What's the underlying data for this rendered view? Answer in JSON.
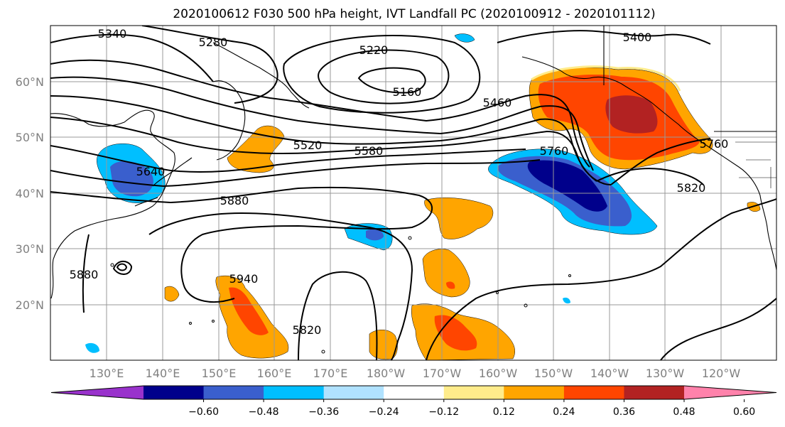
{
  "title": "2020100612 F030 500 hPa height, IVT Landfall PC (2020100912 - 2020101112)",
  "lat_labels": [
    "60°N",
    "50°N",
    "40°N",
    "30°N",
    "20°N"
  ],
  "lon_labels": [
    "130°E",
    "140°E",
    "150°E",
    "160°E",
    "170°E",
    "180°W",
    "170°W",
    "160°W",
    "150°W",
    "140°W",
    "130°W",
    "120°W"
  ],
  "contour_labels": [
    "5340",
    "5280",
    "5220",
    "5160",
    "5400",
    "5460",
    "5520",
    "5580",
    "5640",
    "5880",
    "5940",
    "5820",
    "5880",
    "5820",
    "5760",
    "5760"
  ],
  "colorbar": {
    "ticks": [
      "−0.60",
      "−0.48",
      "−0.36",
      "−0.24",
      "−0.12",
      "0.12",
      "0.24",
      "0.36",
      "0.48",
      "0.60"
    ],
    "colors": [
      "#9932cc",
      "#00008b",
      "#3a5fcd",
      "#00bfff",
      "#b0e2ff",
      "#ffffff",
      "#ffec8b",
      "#ffa500",
      "#ff4500",
      "#b22222",
      "#ff82ab"
    ]
  }
}
